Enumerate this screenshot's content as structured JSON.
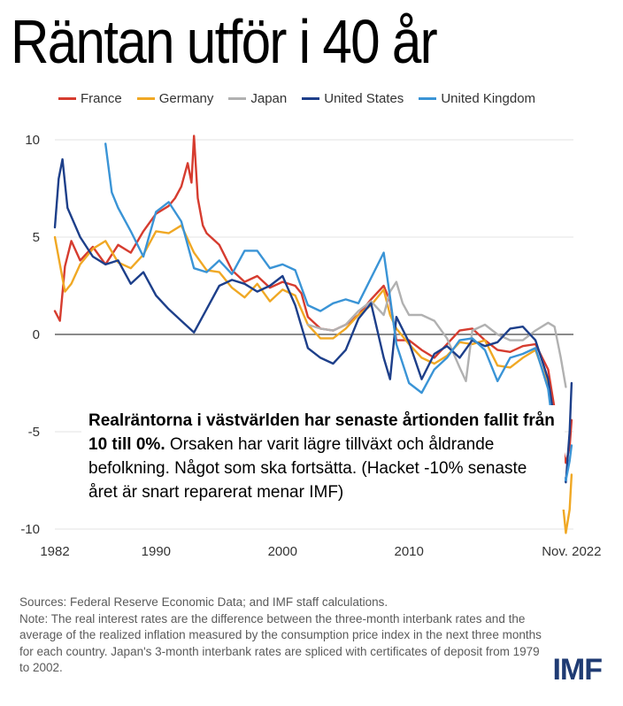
{
  "headline": "Räntan utför i 40 år",
  "annotation": {
    "bold": "Realräntorna i västvärlden har senaste årtionden fallit från 10 till 0%.",
    "rest": " Orsaken har varit lägre tillväxt och åldrande befolkning. Något som ska fortsätta. (Hacket -10% senaste året är snart reparerat menar IMF)"
  },
  "footer": {
    "sources": "Sources: Federal Reserve Economic Data; and IMF staff calculations.",
    "note": "Note: The real interest rates are the difference between the three-month interbank rates and the average of the realized inflation measured by the consumption price index in the next three months for each country. Japan's 3-month interbank rates are spliced with certificates of deposit from 1979 to 2002."
  },
  "logo": "IMF",
  "chart_data": {
    "type": "line",
    "xlim": [
      1982,
      2023
    ],
    "ylim": [
      -10,
      10
    ],
    "yticks": [
      10,
      5,
      0,
      -5,
      -10
    ],
    "xticks": [
      {
        "value": 1982,
        "label": "1982"
      },
      {
        "value": 1990,
        "label": "1990"
      },
      {
        "value": 2000,
        "label": "2000"
      },
      {
        "value": 2010,
        "label": "2010"
      },
      {
        "value": 2022.85,
        "label": "Nov. 2022"
      }
    ],
    "grid": true,
    "legend_position": "top",
    "series": [
      {
        "name": "France",
        "color": "#d63c2f",
        "points": [
          [
            1982,
            1.2
          ],
          [
            1982.4,
            0.7
          ],
          [
            1982.8,
            3.5
          ],
          [
            1983.3,
            4.8
          ],
          [
            1984,
            3.8
          ],
          [
            1985,
            4.5
          ],
          [
            1986,
            3.6
          ],
          [
            1987,
            4.6
          ],
          [
            1988,
            4.2
          ],
          [
            1989,
            5.3
          ],
          [
            1990,
            6.2
          ],
          [
            1991,
            6.6
          ],
          [
            1991.5,
            7.0
          ],
          [
            1992,
            7.6
          ],
          [
            1992.5,
            8.8
          ],
          [
            1992.8,
            7.8
          ],
          [
            1993,
            10.2
          ],
          [
            1993.3,
            7.0
          ],
          [
            1993.7,
            5.6
          ],
          [
            1994,
            5.2
          ],
          [
            1995,
            4.6
          ],
          [
            1996,
            3.3
          ],
          [
            1997,
            2.7
          ],
          [
            1998,
            3.0
          ],
          [
            1999,
            2.4
          ],
          [
            2000,
            2.7
          ],
          [
            2001,
            2.5
          ],
          [
            2001.5,
            2.1
          ],
          [
            2002,
            0.9
          ],
          [
            2003,
            0.3
          ],
          [
            2004,
            0.2
          ],
          [
            2005,
            0.5
          ],
          [
            2006,
            1.0
          ],
          [
            2007,
            1.8
          ],
          [
            2008,
            2.5
          ],
          [
            2008.5,
            1.7
          ],
          [
            2009,
            -0.3
          ],
          [
            2010,
            -0.3
          ],
          [
            2011,
            -0.8
          ],
          [
            2012,
            -1.2
          ],
          [
            2013,
            -0.5
          ],
          [
            2014,
            0.2
          ],
          [
            2015,
            0.3
          ],
          [
            2016,
            -0.3
          ],
          [
            2017,
            -0.8
          ],
          [
            2018,
            -0.9
          ],
          [
            2019,
            -0.6
          ],
          [
            2020,
            -0.5
          ],
          [
            2021,
            -1.8
          ],
          [
            2021.5,
            -3.8
          ],
          [
            2022,
            -5.4
          ],
          [
            2022.4,
            -6.6
          ],
          [
            2022.7,
            -5.8
          ],
          [
            2022.85,
            -4.4
          ]
        ]
      },
      {
        "name": "Germany",
        "color": "#f0a824",
        "points": [
          [
            1982,
            5.0
          ],
          [
            1982.4,
            3.6
          ],
          [
            1982.8,
            2.2
          ],
          [
            1983.3,
            2.6
          ],
          [
            1984,
            3.6
          ],
          [
            1985,
            4.4
          ],
          [
            1986,
            4.8
          ],
          [
            1987,
            3.7
          ],
          [
            1988,
            3.4
          ],
          [
            1989,
            4.1
          ],
          [
            1990,
            5.3
          ],
          [
            1991,
            5.2
          ],
          [
            1992,
            5.6
          ],
          [
            1993,
            4.2
          ],
          [
            1994,
            3.3
          ],
          [
            1995,
            3.2
          ],
          [
            1996,
            2.4
          ],
          [
            1997,
            1.9
          ],
          [
            1998,
            2.6
          ],
          [
            1999,
            1.7
          ],
          [
            2000,
            2.3
          ],
          [
            2001,
            2.0
          ],
          [
            2002,
            0.5
          ],
          [
            2003,
            -0.2
          ],
          [
            2004,
            -0.2
          ],
          [
            2005,
            0.3
          ],
          [
            2006,
            1.0
          ],
          [
            2007,
            1.5
          ],
          [
            2008,
            2.3
          ],
          [
            2008.5,
            1.0
          ],
          [
            2009,
            0.3
          ],
          [
            2010,
            -0.5
          ],
          [
            2011,
            -1.2
          ],
          [
            2012,
            -1.5
          ],
          [
            2013,
            -1.1
          ],
          [
            2014,
            -0.4
          ],
          [
            2015,
            -0.5
          ],
          [
            2016,
            -0.3
          ],
          [
            2017,
            -1.6
          ],
          [
            2018,
            -1.7
          ],
          [
            2019,
            -1.2
          ],
          [
            2020,
            -0.8
          ],
          [
            2021,
            -2.6
          ],
          [
            2021.5,
            -4.8
          ],
          [
            2022,
            -7.6
          ],
          [
            2022.4,
            -10.2
          ],
          [
            2022.7,
            -9.0
          ],
          [
            2022.85,
            -7.2
          ]
        ]
      },
      {
        "name": "Japan",
        "color": "#b1b1b1",
        "points": [
          [
            2002,
            0.5
          ],
          [
            2003,
            0.3
          ],
          [
            2004,
            0.2
          ],
          [
            2005,
            0.5
          ],
          [
            2006,
            1.2
          ],
          [
            2007,
            1.7
          ],
          [
            2008,
            1.0
          ],
          [
            2008.5,
            2.2
          ],
          [
            2009,
            2.7
          ],
          [
            2009.5,
            1.6
          ],
          [
            2010,
            1.0
          ],
          [
            2011,
            1.0
          ],
          [
            2012,
            0.7
          ],
          [
            2013,
            -0.2
          ],
          [
            2014,
            -1.7
          ],
          [
            2014.5,
            -2.4
          ],
          [
            2015,
            0.2
          ],
          [
            2016,
            0.5
          ],
          [
            2017,
            0.0
          ],
          [
            2018,
            -0.3
          ],
          [
            2019,
            -0.3
          ],
          [
            2020,
            0.2
          ],
          [
            2021,
            0.6
          ],
          [
            2021.5,
            0.4
          ],
          [
            2022,
            -1.2
          ],
          [
            2022.4,
            -2.7
          ]
        ]
      },
      {
        "name": "United States",
        "color": "#1d3f8a",
        "points": [
          [
            1982,
            5.5
          ],
          [
            1982.3,
            8.0
          ],
          [
            1982.6,
            9.0
          ],
          [
            1983,
            6.5
          ],
          [
            1984,
            5.0
          ],
          [
            1985,
            4.0
          ],
          [
            1986,
            3.6
          ],
          [
            1987,
            3.8
          ],
          [
            1988,
            2.6
          ],
          [
            1989,
            3.2
          ],
          [
            1990,
            2.0
          ],
          [
            1991,
            1.3
          ],
          [
            1992,
            0.7
          ],
          [
            1993,
            0.1
          ],
          [
            1994,
            1.3
          ],
          [
            1995,
            2.5
          ],
          [
            1996,
            2.8
          ],
          [
            1997,
            2.6
          ],
          [
            1998,
            2.2
          ],
          [
            1999,
            2.5
          ],
          [
            2000,
            3.0
          ],
          [
            2001,
            1.5
          ],
          [
            2002,
            -0.7
          ],
          [
            2003,
            -1.2
          ],
          [
            2004,
            -1.5
          ],
          [
            2005,
            -0.8
          ],
          [
            2006,
            0.8
          ],
          [
            2007,
            1.6
          ],
          [
            2008,
            -1.2
          ],
          [
            2008.5,
            -2.3
          ],
          [
            2009,
            0.9
          ],
          [
            2010,
            -0.4
          ],
          [
            2011,
            -2.3
          ],
          [
            2012,
            -1.0
          ],
          [
            2013,
            -0.6
          ],
          [
            2014,
            -1.2
          ],
          [
            2015,
            -0.3
          ],
          [
            2016,
            -0.6
          ],
          [
            2017,
            -0.4
          ],
          [
            2018,
            0.3
          ],
          [
            2019,
            0.4
          ],
          [
            2020,
            -0.3
          ],
          [
            2021,
            -2.3
          ],
          [
            2021.5,
            -4.5
          ],
          [
            2022,
            -7.0
          ],
          [
            2022.4,
            -7.6
          ],
          [
            2022.7,
            -5.0
          ],
          [
            2022.85,
            -2.5
          ]
        ]
      },
      {
        "name": "United Kingdom",
        "color": "#3a94d6",
        "points": [
          [
            1986,
            9.8
          ],
          [
            1986.5,
            7.3
          ],
          [
            1987,
            6.5
          ],
          [
            1988,
            5.3
          ],
          [
            1989,
            4.0
          ],
          [
            1990,
            6.3
          ],
          [
            1991,
            6.8
          ],
          [
            1992,
            5.8
          ],
          [
            1993,
            3.4
          ],
          [
            1994,
            3.2
          ],
          [
            1995,
            3.8
          ],
          [
            1996,
            3.1
          ],
          [
            1997,
            4.3
          ],
          [
            1998,
            4.3
          ],
          [
            1999,
            3.4
          ],
          [
            2000,
            3.6
          ],
          [
            2001,
            3.3
          ],
          [
            2002,
            1.5
          ],
          [
            2003,
            1.2
          ],
          [
            2004,
            1.6
          ],
          [
            2005,
            1.8
          ],
          [
            2006,
            1.6
          ],
          [
            2007,
            2.9
          ],
          [
            2008,
            4.2
          ],
          [
            2008.5,
            1.9
          ],
          [
            2009,
            -0.5
          ],
          [
            2010,
            -2.5
          ],
          [
            2011,
            -3.0
          ],
          [
            2012,
            -1.8
          ],
          [
            2013,
            -1.2
          ],
          [
            2014,
            -0.3
          ],
          [
            2015,
            -0.2
          ],
          [
            2016,
            -0.8
          ],
          [
            2017,
            -2.4
          ],
          [
            2018,
            -1.2
          ],
          [
            2019,
            -1.0
          ],
          [
            2020,
            -0.7
          ],
          [
            2021,
            -2.8
          ],
          [
            2021.5,
            -5.4
          ],
          [
            2022,
            -7.2
          ],
          [
            2022.4,
            -7.5
          ],
          [
            2022.7,
            -6.5
          ],
          [
            2022.85,
            -5.7
          ]
        ]
      }
    ]
  }
}
